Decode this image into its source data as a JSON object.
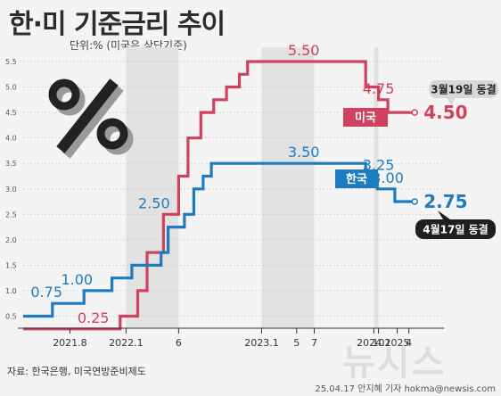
{
  "title": "한·미 기준금리 추이",
  "unit": "단위:% (미국은 상단기준)",
  "source": "자료: 한국은행, 미국연방준비제도",
  "credit": "25.04.17 안지혜 기자  hokma@newsis.com",
  "watermark": "뉴시스",
  "percent_icon": "percent-icon",
  "colors": {
    "us": "#d2405f",
    "korea": "#1e7bbf",
    "shade": "#e2e2e2",
    "grid": "#c9c9c9",
    "text": "#333333"
  },
  "chart_data": {
    "type": "line",
    "step": true,
    "title": "한·미 기준금리 추이",
    "ylabel": "단위:% (미국은 상단기준)",
    "ylim": [
      0,
      5.5
    ],
    "yticks": [
      "0.5",
      "1.0",
      "1.5",
      "2.0",
      "2.5",
      "3.0",
      "3.5",
      "4.0",
      "4.5",
      "5.0",
      "5.5"
    ],
    "ytick_values": [
      0.5,
      1.0,
      1.5,
      2.0,
      2.5,
      3.0,
      3.5,
      4.0,
      4.5,
      5.0,
      5.5
    ],
    "xlim": [
      0,
      36
    ],
    "xticks": [
      {
        "label": "2021.8",
        "x": 4
      },
      {
        "label": "2022.1",
        "x": 8.8
      },
      {
        "label": "6",
        "x": 13.3
      },
      {
        "label": "2023.1",
        "x": 20.4
      },
      {
        "label": "5",
        "x": 23.4
      },
      {
        "label": "7",
        "x": 24.9
      },
      {
        "label": "2024.1",
        "x": 30.0
      },
      {
        "label": "10",
        "x": 30.4
      },
      {
        "label": "2025",
        "x": 32.0
      },
      {
        "label": "4",
        "x": 33.0
      }
    ],
    "shaded_regions": [
      [
        8.8,
        13.3
      ],
      [
        20.4,
        24.9
      ],
      [
        30.0,
        30.4
      ]
    ],
    "series": [
      {
        "name": "미국",
        "points": [
          [
            0,
            0.25
          ],
          [
            8.3,
            0.25
          ],
          [
            8.3,
            0.5
          ],
          [
            9.8,
            0.5
          ],
          [
            9.8,
            1.0
          ],
          [
            10.6,
            1.0
          ],
          [
            10.6,
            1.75
          ],
          [
            12.0,
            1.75
          ],
          [
            12.0,
            2.5
          ],
          [
            13.3,
            2.5
          ],
          [
            13.3,
            3.25
          ],
          [
            14.1,
            3.25
          ],
          [
            14.1,
            4.0
          ],
          [
            15.2,
            4.0
          ],
          [
            15.2,
            4.5
          ],
          [
            16.3,
            4.5
          ],
          [
            16.3,
            4.75
          ],
          [
            17.4,
            4.75
          ],
          [
            17.4,
            5.0
          ],
          [
            18.5,
            5.0
          ],
          [
            18.5,
            5.25
          ],
          [
            19.2,
            5.25
          ],
          [
            19.2,
            5.5
          ],
          [
            29.3,
            5.5
          ],
          [
            29.3,
            5.0
          ],
          [
            30.4,
            5.0
          ],
          [
            30.4,
            4.75
          ],
          [
            31.2,
            4.75
          ],
          [
            31.2,
            4.5
          ],
          [
            33.5,
            4.5
          ]
        ],
        "end_value": "4.50",
        "annotations": [
          {
            "text": "0.25",
            "x": 6.0,
            "y": 0.25
          },
          {
            "text": "5.50",
            "x": 24.0,
            "y": 5.5
          },
          {
            "text": "4.75",
            "x": 30.4,
            "y": 4.75
          }
        ],
        "callout": "3월19일 동결"
      },
      {
        "name": "한국",
        "points": [
          [
            0,
            0.5
          ],
          [
            2.5,
            0.5
          ],
          [
            2.5,
            0.75
          ],
          [
            5.2,
            0.75
          ],
          [
            5.2,
            1.0
          ],
          [
            7.6,
            1.0
          ],
          [
            7.6,
            1.25
          ],
          [
            9.3,
            1.25
          ],
          [
            9.3,
            1.5
          ],
          [
            11.8,
            1.5
          ],
          [
            11.8,
            1.75
          ],
          [
            12.4,
            1.75
          ],
          [
            12.4,
            2.25
          ],
          [
            13.8,
            2.25
          ],
          [
            13.8,
            2.5
          ],
          [
            14.6,
            2.5
          ],
          [
            14.6,
            3.0
          ],
          [
            15.4,
            3.0
          ],
          [
            15.4,
            3.25
          ],
          [
            16.1,
            3.25
          ],
          [
            16.1,
            3.5
          ],
          [
            29.3,
            3.5
          ],
          [
            29.3,
            3.25
          ],
          [
            30.3,
            3.25
          ],
          [
            30.3,
            3.0
          ],
          [
            31.8,
            3.0
          ],
          [
            31.8,
            2.75
          ],
          [
            33.5,
            2.75
          ]
        ],
        "end_value": "2.75",
        "annotations": [
          {
            "text": "0.75",
            "x": 2.0,
            "y": 0.75
          },
          {
            "text": "1.00",
            "x": 4.6,
            "y": 1.0
          },
          {
            "text": "2.50",
            "x": 11.2,
            "y": 2.5
          },
          {
            "text": "3.50",
            "x": 24.0,
            "y": 3.5
          },
          {
            "text": "3.25",
            "x": 30.4,
            "y": 3.25
          },
          {
            "text": "3.00",
            "x": 31.2,
            "y": 3.0
          }
        ],
        "callout": "4월17일 동결"
      }
    ]
  }
}
